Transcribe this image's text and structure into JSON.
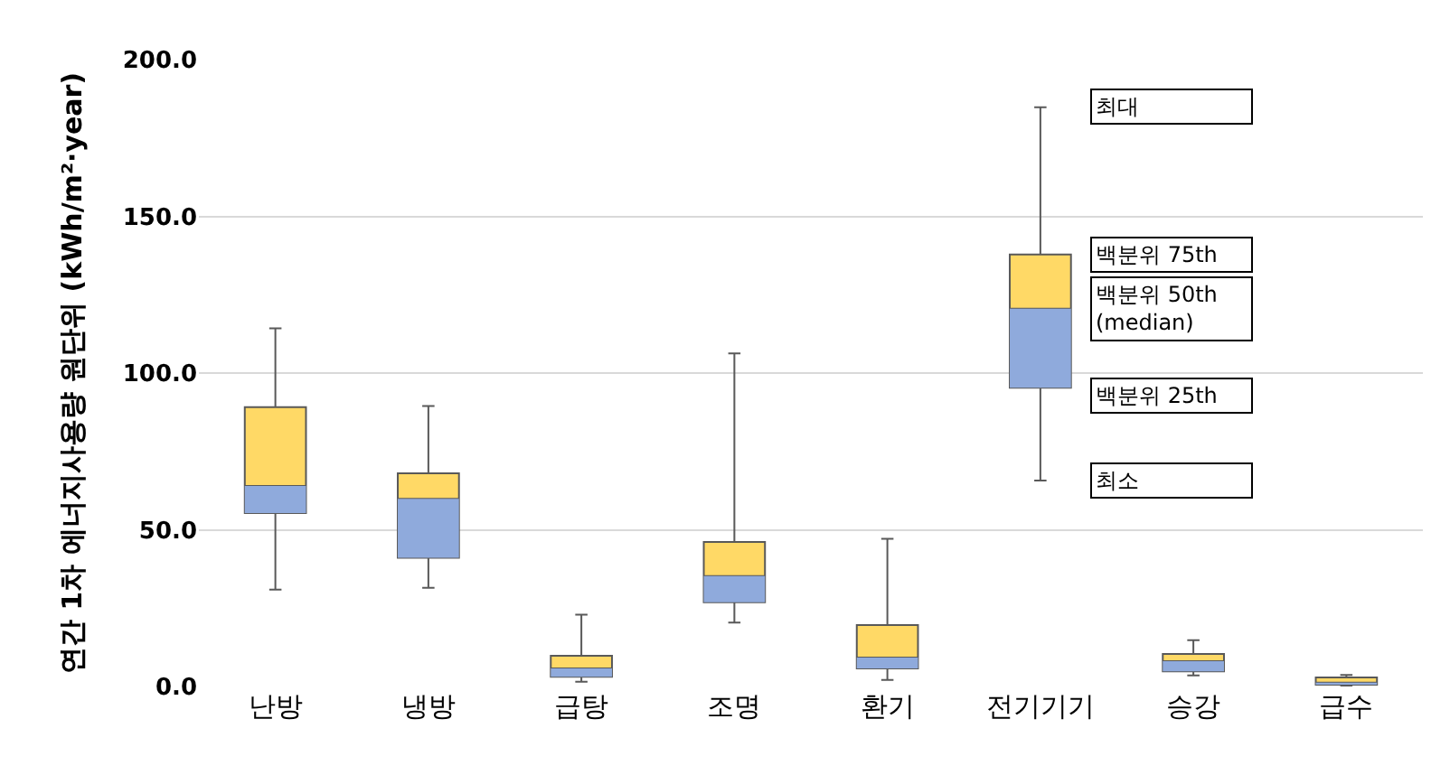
{
  "chart_data": {
    "type": "box",
    "ylabel": "연간 1차 에너지사용량 원단위 (kWh/m²·year)",
    "categories": [
      "난방",
      "냉방",
      "급탕",
      "조명",
      "환기",
      "전기기기",
      "승강",
      "급수"
    ],
    "color": "#8faadc",
    "colors": [
      "#ffd966",
      "#ffd966",
      "#ffd966",
      "#ffd966",
      "#ffd966",
      "#ffd966",
      "#ffd966",
      "#ffd966"
    ],
    "boxes": [
      {
        "low": 30.9,
        "q1": 55.3,
        "median": 64.0,
        "q3": 89.1,
        "high": 114.3
      },
      {
        "low": 31.5,
        "q1": 41.1,
        "median": 59.9,
        "q3": 68.0,
        "high": 89.5
      },
      {
        "low": 1.5,
        "q1": 3.1,
        "median": 5.8,
        "q3": 9.8,
        "high": 22.9
      },
      {
        "low": 20.4,
        "q1": 26.9,
        "median": 35.2,
        "q3": 46.1,
        "high": 106.3
      },
      {
        "low": 2.1,
        "q1": 5.8,
        "median": 9.2,
        "q3": 19.6,
        "high": 47.1
      },
      {
        "low": 65.7,
        "q1": 95.3,
        "median": 120.5,
        "q3": 137.8,
        "high": 184.8
      },
      {
        "low": 3.5,
        "q1": 4.8,
        "median": 8.1,
        "q3": 10.4,
        "high": 14.8
      },
      {
        "low": 0.2,
        "q1": 0.6,
        "median": 1.2,
        "q3": 2.9,
        "high": 3.7
      }
    ],
    "ylim": [
      0,
      200
    ],
    "yticks": [
      {
        "value": 0,
        "label": "0.0"
      },
      {
        "value": 50,
        "label": "50.0"
      },
      {
        "value": 100,
        "label": "100.0"
      },
      {
        "value": 150,
        "label": "150.0"
      },
      {
        "value": 200,
        "label": "200.0"
      }
    ],
    "grid": "y",
    "annotations": [
      {
        "text": "최대",
        "x": "전기기기",
        "y": 184.8
      },
      {
        "text": "백분위 75th",
        "x": "전기기기",
        "y": 137.8
      },
      {
        "text": "백분위 50th\n(median)",
        "x": "전기기기",
        "y": 120.5
      },
      {
        "text": "백분위 25th",
        "x": "전기기기",
        "y": 93
      },
      {
        "text": "최소",
        "x": "전기기기",
        "y": 65.7
      }
    ]
  }
}
